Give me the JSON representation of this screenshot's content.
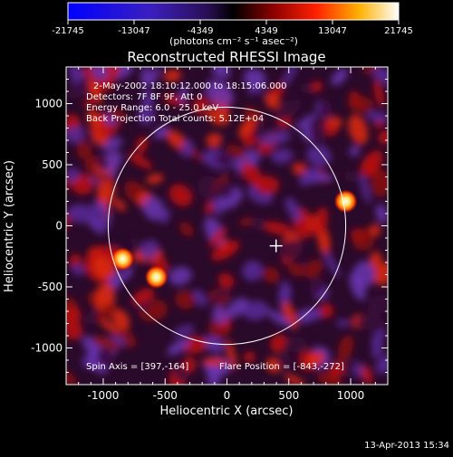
{
  "colorbar": {
    "ticks": [
      "-21745",
      "-13047",
      "-4349",
      "4349",
      "13047",
      "21745"
    ],
    "unit_label": "(photons cm⁻² s⁻¹ asec⁻²)"
  },
  "footer": {
    "timestamp": "13-Apr-2013 15:34"
  },
  "chart_data": {
    "type": "heatmap",
    "title": "Reconstructed RHESSI Image",
    "xlabel": "Heliocentric X (arcsec)",
    "ylabel": "Heliocentric Y (arcsec)",
    "xlim": [
      -1300,
      1300
    ],
    "ylim": [
      -1300,
      1300
    ],
    "xticks": [
      -1000,
      -500,
      0,
      500,
      1000
    ],
    "yticks": [
      -1000,
      -500,
      0,
      500,
      1000
    ],
    "value_range": [
      -21745,
      21745
    ],
    "annotations": [
      "2-May-2002 18:10:12.000 to 18:15:06.000",
      "Detectors: 7F 8F 9F, Att 0",
      "Energy Range: 6.0 - 25.0 keV",
      "Back Projection    Total counts: 5.12E+04"
    ],
    "footer_notes": [
      "Spin Axis = [397,-164]",
      "Flare Position = [-843,-272]"
    ],
    "solar_limb_radius": 960,
    "spin_axis": [
      397,
      -164
    ],
    "bright_sources": [
      {
        "x": -843,
        "y": -272
      },
      {
        "x": -570,
        "y": -420
      },
      {
        "x": 960,
        "y": 200
      }
    ]
  }
}
